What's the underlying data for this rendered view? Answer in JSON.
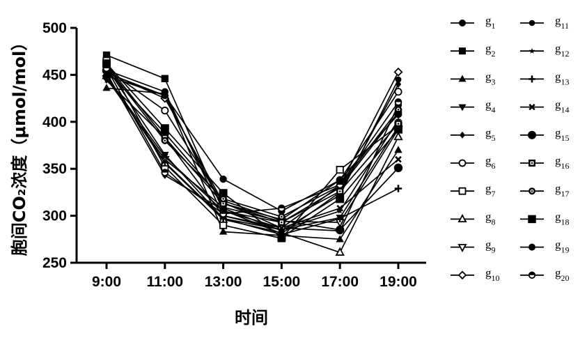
{
  "chart_data": {
    "type": "line",
    "title": "",
    "xlabel": "时间",
    "ylabel": "胞间CO₂浓度（μmol/mol）",
    "x": [
      "9:00",
      "11:00",
      "13:00",
      "15:00",
      "17:00",
      "19:00"
    ],
    "ylim": [
      250,
      500
    ],
    "yticks": [
      250,
      300,
      350,
      400,
      450,
      500
    ],
    "grid": false,
    "legend_position": "right",
    "line_color": "#000000",
    "series": [
      {
        "name": "g1",
        "sub": "1",
        "base": "g",
        "marker": "circle-filled",
        "values": [
          455,
          432,
          300,
          287,
          284,
          418
        ]
      },
      {
        "name": "g2",
        "sub": "2",
        "base": "g",
        "marker": "square-filled",
        "values": [
          471,
          446,
          305,
          293,
          330,
          410
        ]
      },
      {
        "name": "g3",
        "sub": "3",
        "base": "g",
        "marker": "triangle-filled",
        "values": [
          436,
          430,
          283,
          279,
          275,
          370
        ]
      },
      {
        "name": "g4",
        "sub": "4",
        "base": "g",
        "marker": "triangle-down-filled",
        "values": [
          458,
          365,
          297,
          285,
          298,
          395
        ]
      },
      {
        "name": "g5",
        "sub": "5",
        "base": "g",
        "marker": "diamond-filled",
        "values": [
          452,
          343,
          306,
          281,
          325,
          440
        ]
      },
      {
        "name": "g6",
        "sub": "6",
        "base": "g",
        "marker": "circle-open",
        "values": [
          456,
          412,
          313,
          296,
          338,
          432
        ]
      },
      {
        "name": "g7",
        "sub": "7",
        "base": "g",
        "marker": "square-open",
        "values": [
          465,
          352,
          290,
          276,
          349,
          396
        ]
      },
      {
        "name": "g8",
        "sub": "8",
        "base": "g",
        "marker": "triangle-open",
        "values": [
          449,
          356,
          296,
          282,
          261,
          384
        ]
      },
      {
        "name": "g9",
        "sub": "9",
        "base": "g",
        "marker": "triangle-down-open",
        "values": [
          446,
          360,
          309,
          294,
          293,
          392
        ]
      },
      {
        "name": "g10",
        "sub": "10",
        "base": "g",
        "marker": "diamond-open",
        "values": [
          453,
          425,
          314,
          287,
          332,
          453
        ]
      },
      {
        "name": "g11",
        "sub": "11",
        "base": "g",
        "marker": "circle-small",
        "values": [
          452,
          428,
          308,
          284,
          322,
          445
        ]
      },
      {
        "name": "g12",
        "sub": "12",
        "base": "g",
        "marker": "star",
        "values": [
          444,
          383,
          300,
          285,
          305,
          402
        ]
      },
      {
        "name": "g13",
        "sub": "13",
        "base": "g",
        "marker": "plus",
        "values": [
          449,
          357,
          297,
          280,
          297,
          329
        ]
      },
      {
        "name": "g14",
        "sub": "14",
        "base": "g",
        "marker": "cross",
        "values": [
          448,
          363,
          305,
          287,
          308,
          360
        ]
      },
      {
        "name": "g15",
        "sub": "15",
        "base": "g",
        "marker": "circle-big",
        "values": [
          455,
          388,
          316,
          295,
          285,
          351
        ]
      },
      {
        "name": "g16",
        "sub": "16",
        "base": "g",
        "marker": "square-dot",
        "values": [
          461,
          383,
          313,
          293,
          326,
          398
        ]
      },
      {
        "name": "g17",
        "sub": "17",
        "base": "g",
        "marker": "circle-dot",
        "values": [
          459,
          380,
          318,
          299,
          332,
          413
        ]
      },
      {
        "name": "g18",
        "sub": "18",
        "base": "g",
        "marker": "square-big",
        "values": [
          462,
          393,
          324,
          277,
          318,
          392
        ]
      },
      {
        "name": "g19",
        "sub": "19",
        "base": "g",
        "marker": "circle-filled",
        "values": [
          449,
          428,
          339,
          305,
          338,
          408
        ]
      },
      {
        "name": "g20",
        "sub": "20",
        "base": "g",
        "marker": "circle-half",
        "values": [
          457,
          346,
          302,
          308,
          333,
          421
        ]
      }
    ]
  }
}
